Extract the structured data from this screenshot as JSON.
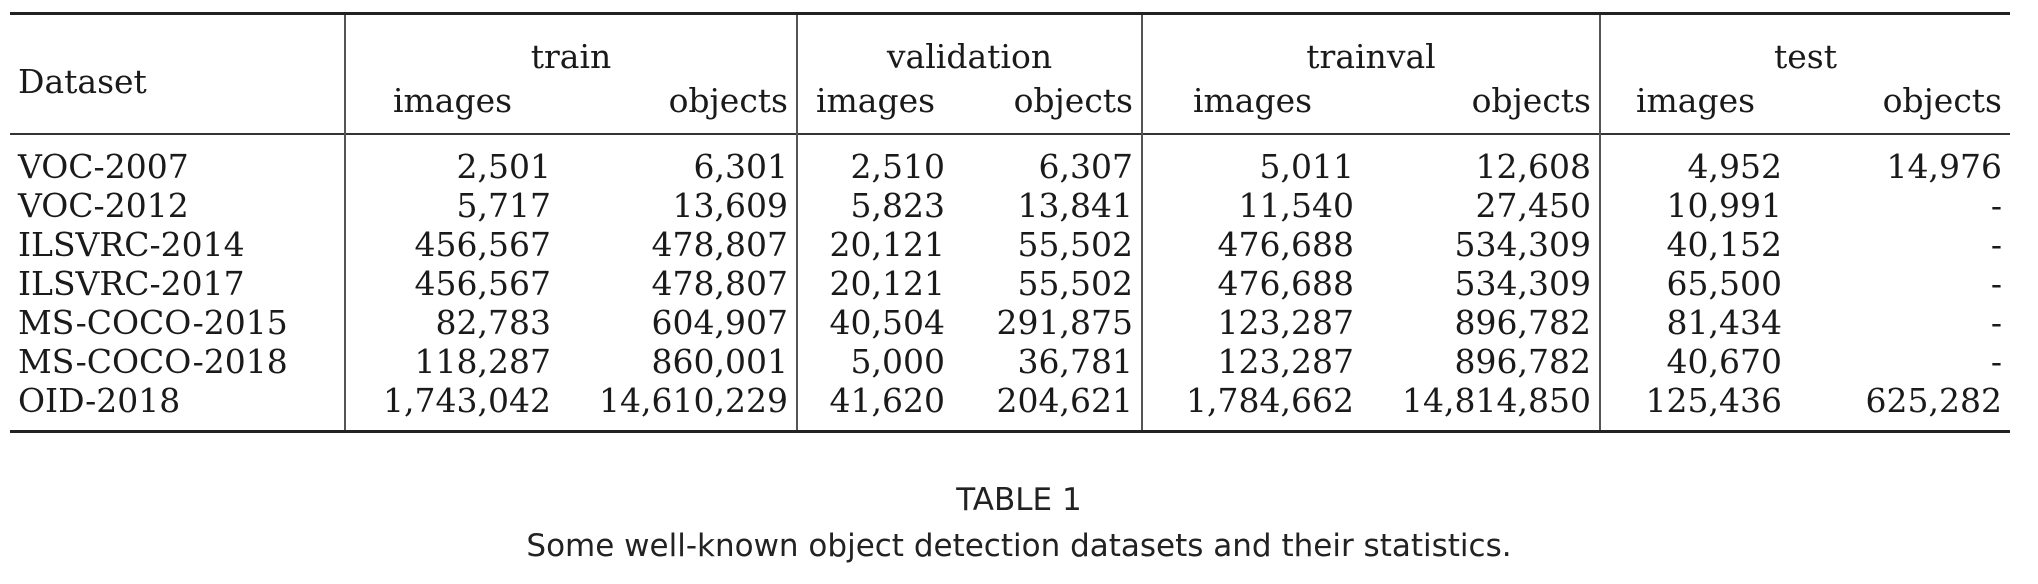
{
  "table": {
    "header": {
      "dataset": "Dataset",
      "groups": [
        "train",
        "validation",
        "trainval",
        "test"
      ],
      "sub": [
        "images",
        "objects"
      ]
    },
    "rows": [
      {
        "dataset": "VOC-2007",
        "train_images": "2,501",
        "train_objects": "6,301",
        "validation_images": "2,510",
        "validation_objects": "6,307",
        "trainval_images": "5,011",
        "trainval_objects": "12,608",
        "test_images": "4,952",
        "test_objects": "14,976"
      },
      {
        "dataset": "VOC-2012",
        "train_images": "5,717",
        "train_objects": "13,609",
        "validation_images": "5,823",
        "validation_objects": "13,841",
        "trainval_images": "11,540",
        "trainval_objects": "27,450",
        "test_images": "10,991",
        "test_objects": "-"
      },
      {
        "dataset": "ILSVRC-2014",
        "train_images": "456,567",
        "train_objects": "478,807",
        "validation_images": "20,121",
        "validation_objects": "55,502",
        "trainval_images": "476,688",
        "trainval_objects": "534,309",
        "test_images": "40,152",
        "test_objects": "-"
      },
      {
        "dataset": "ILSVRC-2017",
        "train_images": "456,567",
        "train_objects": "478,807",
        "validation_images": "20,121",
        "validation_objects": "55,502",
        "trainval_images": "476,688",
        "trainval_objects": "534,309",
        "test_images": "65,500",
        "test_objects": "-"
      },
      {
        "dataset": "MS-COCO-2015",
        "train_images": "82,783",
        "train_objects": "604,907",
        "validation_images": "40,504",
        "validation_objects": "291,875",
        "trainval_images": "123,287",
        "trainval_objects": "896,782",
        "test_images": "81,434",
        "test_objects": "-"
      },
      {
        "dataset": "MS-COCO-2018",
        "train_images": "118,287",
        "train_objects": "860,001",
        "validation_images": "5,000",
        "validation_objects": "36,781",
        "trainval_images": "123,287",
        "trainval_objects": "896,782",
        "test_images": "40,670",
        "test_objects": "-"
      },
      {
        "dataset": "OID-2018",
        "train_images": "1,743,042",
        "train_objects": "14,610,229",
        "validation_images": "41,620",
        "validation_objects": "204,621",
        "trainval_images": "1,784,662",
        "trainval_objects": "14,814,850",
        "test_images": "125,436",
        "test_objects": "625,282"
      }
    ]
  },
  "caption": {
    "title": "TABLE 1",
    "text": "Some well-known object detection datasets and their statistics."
  }
}
